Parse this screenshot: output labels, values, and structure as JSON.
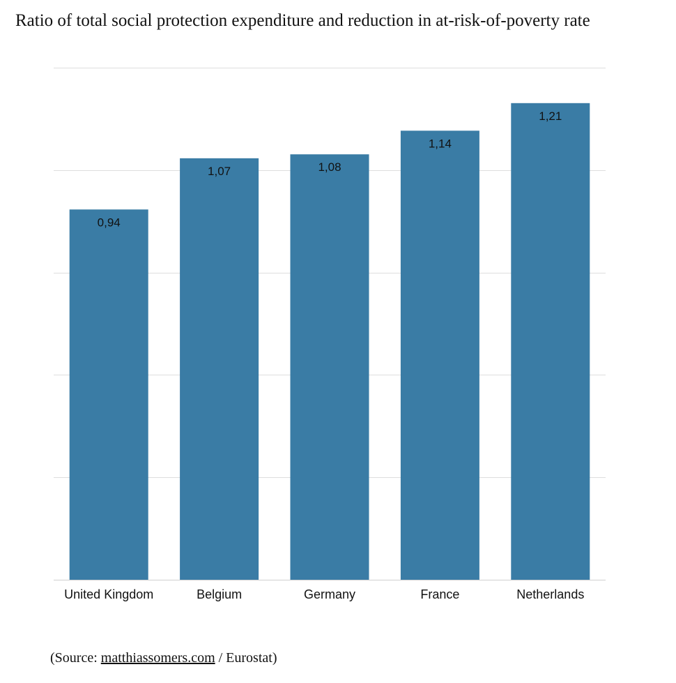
{
  "chart_data": {
    "type": "bar",
    "title": "Ratio of total social protection expenditure and reduction in at-risk-of-poverty rate",
    "categories": [
      "United Kingdom",
      "Belgium",
      "Germany",
      "France",
      "Netherlands"
    ],
    "values": [
      0.94,
      1.07,
      1.08,
      1.14,
      1.21
    ],
    "data_labels": [
      "0,94",
      "1,07",
      "1,08",
      "1,14",
      "1,21"
    ],
    "xlabel": "",
    "ylabel": "",
    "ylim": [
      0,
      1.3
    ],
    "grid_step": 0.26,
    "grid": true,
    "legend": "none",
    "bar_color": "#3a7ca5"
  },
  "source": {
    "prefix": "(Source: ",
    "link": "matthiassomers.com",
    "suffix": " / Eurostat)"
  }
}
